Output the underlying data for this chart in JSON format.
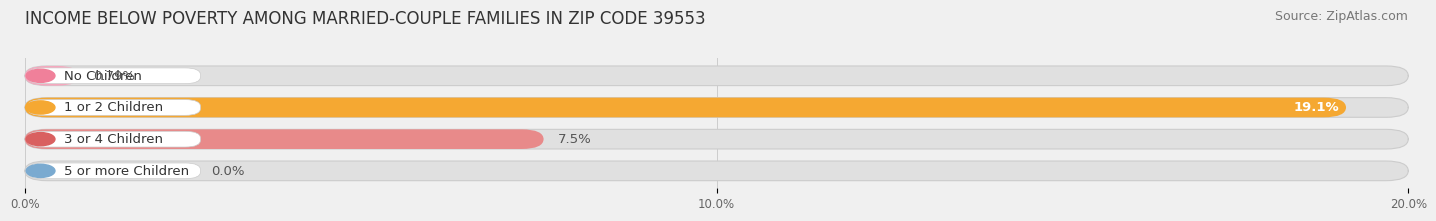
{
  "title": "INCOME BELOW POVERTY AMONG MARRIED-COUPLE FAMILIES IN ZIP CODE 39553",
  "source": "Source: ZipAtlas.com",
  "categories": [
    "No Children",
    "1 or 2 Children",
    "3 or 4 Children",
    "5 or more Children"
  ],
  "values": [
    0.79,
    19.1,
    7.5,
    0.0
  ],
  "value_labels": [
    "0.79%",
    "19.1%",
    "7.5%",
    "0.0%"
  ],
  "bar_colors": [
    "#f5a8be",
    "#f5a832",
    "#e88a8a",
    "#a8c4e0"
  ],
  "label_circle_colors": [
    "#f0809a",
    "#f5a832",
    "#d96060",
    "#7aaad0"
  ],
  "value_inside_bar": [
    false,
    true,
    false,
    false
  ],
  "xlim": [
    0,
    20.0
  ],
  "xticks": [
    0.0,
    10.0,
    20.0
  ],
  "xtick_labels": [
    "0.0%",
    "10.0%",
    "20.0%"
  ],
  "bg_color": "#f0f0f0",
  "bar_bg_color": "#e0e0e0",
  "title_fontsize": 12,
  "source_fontsize": 9,
  "label_fontsize": 9.5,
  "value_fontsize": 9.5
}
